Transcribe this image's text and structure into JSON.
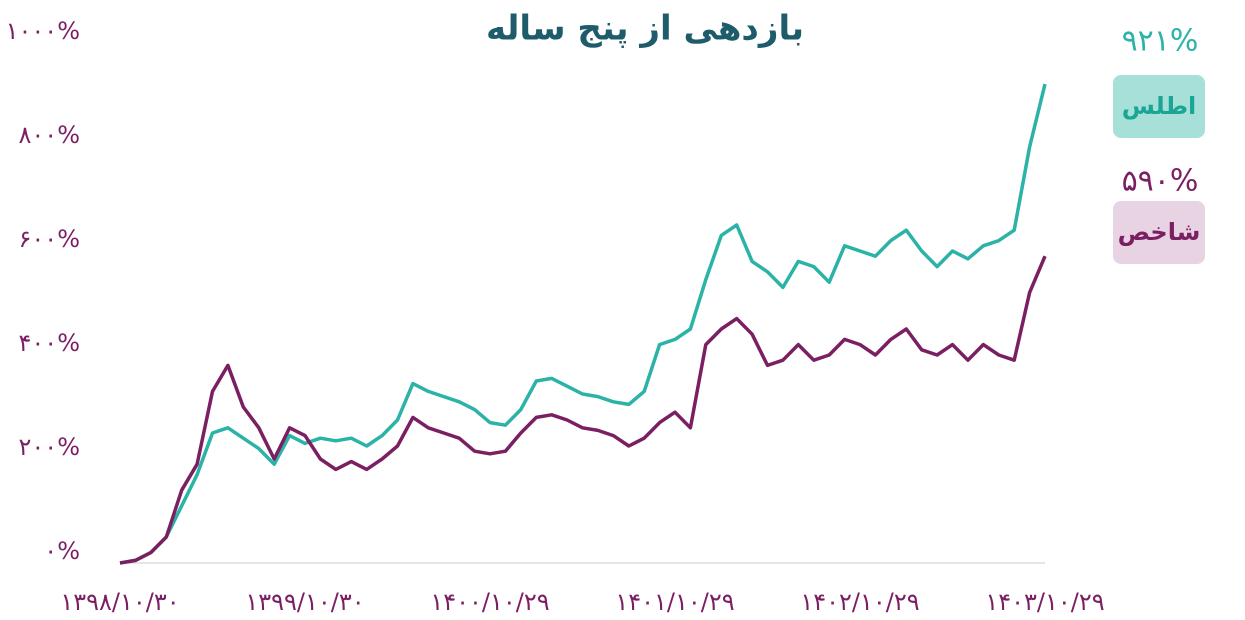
{
  "chart_data": {
    "type": "line",
    "title": "بازدهی از پنج ساله",
    "categories": [
      "۱۳۹۸/۱۰/۳۰",
      null,
      null,
      null,
      null,
      null,
      null,
      null,
      null,
      null,
      null,
      null,
      "۱۳۹۹/۱۰/۳۰",
      null,
      null,
      null,
      null,
      null,
      null,
      null,
      null,
      null,
      null,
      null,
      "۱۴۰۰/۱۰/۲۹",
      null,
      null,
      null,
      null,
      null,
      null,
      null,
      null,
      null,
      null,
      null,
      "۱۴۰۱/۱۰/۲۹",
      null,
      null,
      null,
      null,
      null,
      null,
      null,
      null,
      null,
      null,
      null,
      "۱۴۰۲/۱۰/۲۹",
      null,
      null,
      null,
      null,
      null,
      null,
      null,
      null,
      null,
      null,
      null,
      "۱۴۰۳/۱۰/۲۹"
    ],
    "series": [
      {
        "name": "اطلس",
        "color": "#2ab3a6",
        "values": [
          0,
          5,
          20,
          50,
          110,
          170,
          250,
          260,
          240,
          220,
          190,
          245,
          230,
          240,
          235,
          240,
          225,
          245,
          275,
          345,
          330,
          320,
          310,
          295,
          270,
          265,
          295,
          350,
          355,
          340,
          325,
          320,
          310,
          305,
          330,
          420,
          430,
          450,
          545,
          630,
          650,
          580,
          560,
          530,
          580,
          570,
          540,
          610,
          600,
          590,
          620,
          640,
          600,
          570,
          600,
          585,
          610,
          620,
          640,
          800,
          921
        ],
        "value_labels": [
          null,
          null,
          null,
          null,
          null,
          null,
          null,
          null,
          null,
          null,
          null,
          null,
          null,
          null,
          null,
          null,
          null,
          null,
          null,
          null,
          null,
          null,
          null,
          null,
          null,
          null,
          null,
          null,
          null,
          null,
          null,
          null,
          null,
          null,
          null,
          null,
          null,
          null,
          null,
          null,
          null,
          null,
          null,
          null,
          null,
          null,
          null,
          null,
          null,
          null,
          null,
          null,
          null,
          null,
          null,
          null,
          null,
          null,
          null,
          null,
          "۹۲۱%"
        ]
      },
      {
        "name": "شاخص",
        "color": "#7b1f63",
        "values": [
          0,
          5,
          20,
          50,
          140,
          190,
          330,
          380,
          300,
          260,
          200,
          260,
          245,
          200,
          180,
          195,
          180,
          200,
          225,
          280,
          260,
          250,
          240,
          215,
          210,
          215,
          250,
          280,
          285,
          275,
          260,
          255,
          245,
          225,
          240,
          270,
          290,
          260,
          420,
          450,
          470,
          440,
          380,
          390,
          420,
          390,
          400,
          430,
          420,
          400,
          430,
          450,
          410,
          400,
          420,
          390,
          420,
          400,
          390,
          520,
          590
        ],
        "value_labels": [
          null,
          null,
          null,
          null,
          null,
          null,
          null,
          null,
          null,
          null,
          null,
          null,
          null,
          null,
          null,
          null,
          null,
          null,
          null,
          null,
          null,
          null,
          null,
          null,
          null,
          null,
          null,
          null,
          null,
          null,
          null,
          null,
          null,
          null,
          null,
          null,
          null,
          null,
          null,
          null,
          null,
          null,
          null,
          null,
          null,
          null,
          null,
          null,
          null,
          null,
          null,
          null,
          null,
          null,
          null,
          null,
          null,
          null,
          null,
          null,
          "۵۹۰%"
        ]
      }
    ],
    "ylim": [
      0,
      1000
    ],
    "yticks": [
      {
        "value": 0,
        "label": "۰%"
      },
      {
        "value": 200,
        "label": "۲۰۰%"
      },
      {
        "value": 400,
        "label": "۴۰۰%"
      },
      {
        "value": 600,
        "label": "۶۰۰%"
      },
      {
        "value": 800,
        "label": "۸۰۰%"
      },
      {
        "value": 1000,
        "label": "۱۰۰۰%"
      }
    ],
    "grid": false
  }
}
